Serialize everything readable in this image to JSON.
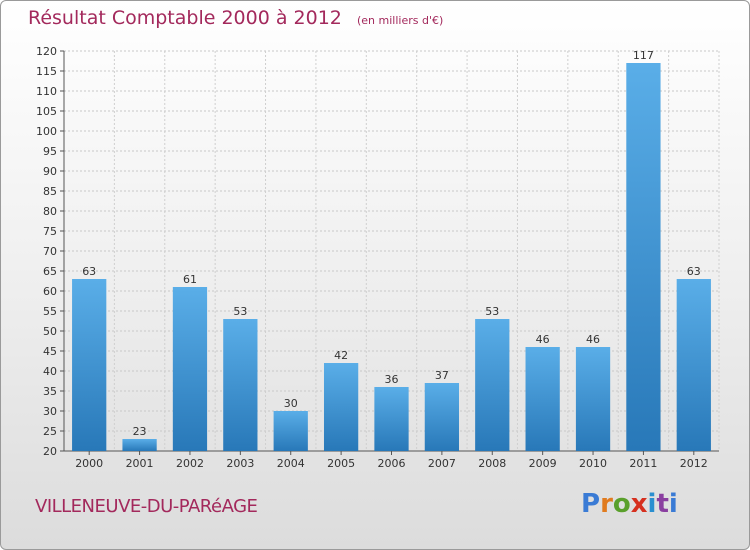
{
  "header": {
    "title": "Résultat Comptable 2000 à 2012",
    "subtitle": "(en milliers d'€)"
  },
  "footer": {
    "town": "VILLENEUVE-DU-PARéAGE",
    "logo_letters": [
      "P",
      "r",
      "o",
      "x",
      "i",
      "t",
      "i"
    ]
  },
  "chart_data": {
    "type": "bar",
    "title": "Résultat Comptable 2000 à 2012",
    "subtitle": "(en milliers d'€)",
    "xlabel": "",
    "ylabel": "",
    "ylim": [
      20,
      120
    ],
    "yticks": [
      20,
      25,
      30,
      35,
      40,
      45,
      50,
      55,
      60,
      65,
      70,
      75,
      80,
      85,
      90,
      95,
      100,
      105,
      110,
      115,
      120
    ],
    "categories": [
      "2000",
      "2001",
      "2002",
      "2003",
      "2004",
      "2005",
      "2006",
      "2007",
      "2008",
      "2009",
      "2010",
      "2011",
      "2012"
    ],
    "values": [
      63,
      23,
      61,
      53,
      30,
      42,
      36,
      37,
      53,
      46,
      46,
      117,
      63
    ],
    "grid": true,
    "bar_color_light": "#5aaee8",
    "bar_color_dark": "#2878b8"
  }
}
